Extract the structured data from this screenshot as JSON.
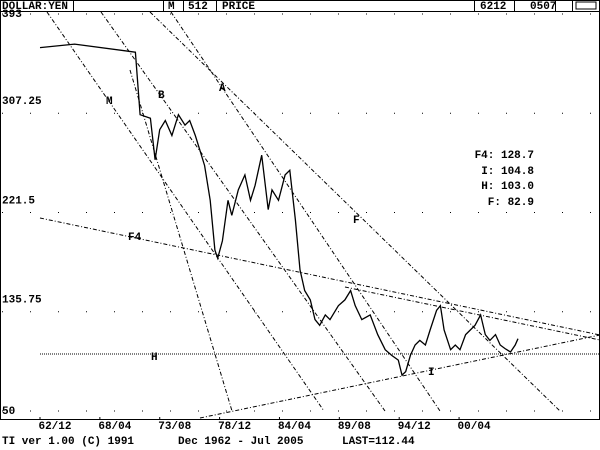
{
  "chart_data": {
    "type": "line",
    "title": "DOLLAR:YEN",
    "header_fields": [
      "M",
      "512",
      "PRICE",
      "6212",
      "0507"
    ],
    "footer": [
      "TI ver 1.00 (C) 1991",
      "Dec 1962 - Jul 2005",
      "LAST=112.44"
    ],
    "x": [
      0,
      37,
      102,
      107,
      118,
      123,
      128,
      134,
      141,
      148,
      155,
      160,
      166,
      171,
      176,
      182,
      187,
      190,
      195,
      201,
      205,
      212,
      219,
      225,
      230,
      237,
      244,
      248,
      255,
      262,
      267,
      273,
      278,
      283,
      289,
      294,
      299,
      305,
      310,
      319,
      326,
      332,
      337,
      344,
      353,
      361,
      369,
      376,
      383,
      387,
      391,
      396,
      401,
      406,
      412,
      417,
      424,
      428,
      432,
      439,
      444,
      449,
      455,
      460,
      465,
      471,
      476,
      481,
      487,
      492,
      497,
      503,
      508,
      511
    ],
    "values": [
      364,
      367,
      360,
      306,
      303,
      267,
      293,
      301,
      288,
      306,
      297,
      301,
      288,
      275,
      262,
      232,
      189,
      182,
      197,
      232,
      219,
      241,
      254,
      232,
      245,
      271,
      224,
      241,
      232,
      254,
      258,
      215,
      172,
      154,
      146,
      129,
      124,
      133,
      129,
      141,
      146,
      154,
      141,
      129,
      133,
      116,
      103,
      98,
      94,
      81,
      84,
      98,
      107,
      111,
      107,
      120,
      137,
      141,
      120,
      103,
      107,
      103,
      116,
      120,
      124,
      133,
      116,
      111,
      116,
      107,
      104,
      101,
      107,
      112.44
    ],
    "color": "#000000",
    "xlim": [
      0,
      511
    ],
    "xticks": [
      {
        "value": 0,
        "label": "62/12"
      },
      {
        "value": 64,
        "label": "68/04"
      },
      {
        "value": 128,
        "label": "73/08"
      },
      {
        "value": 192,
        "label": "78/12"
      },
      {
        "value": 256,
        "label": "84/04"
      },
      {
        "value": 320,
        "label": "89/08"
      },
      {
        "value": 384,
        "label": "94/12"
      },
      {
        "value": 448,
        "label": "00/04"
      }
    ],
    "ylim": [
      50,
      393
    ],
    "yticks": [
      50,
      135.75,
      221.5,
      307.25,
      393
    ],
    "annotations": [
      "M",
      "B",
      "A",
      "F",
      "F4",
      "H",
      "I"
    ],
    "readout": [
      "F4: 128.7",
      "I: 104.8",
      "H: 103.0",
      "F: 82.9"
    ]
  }
}
